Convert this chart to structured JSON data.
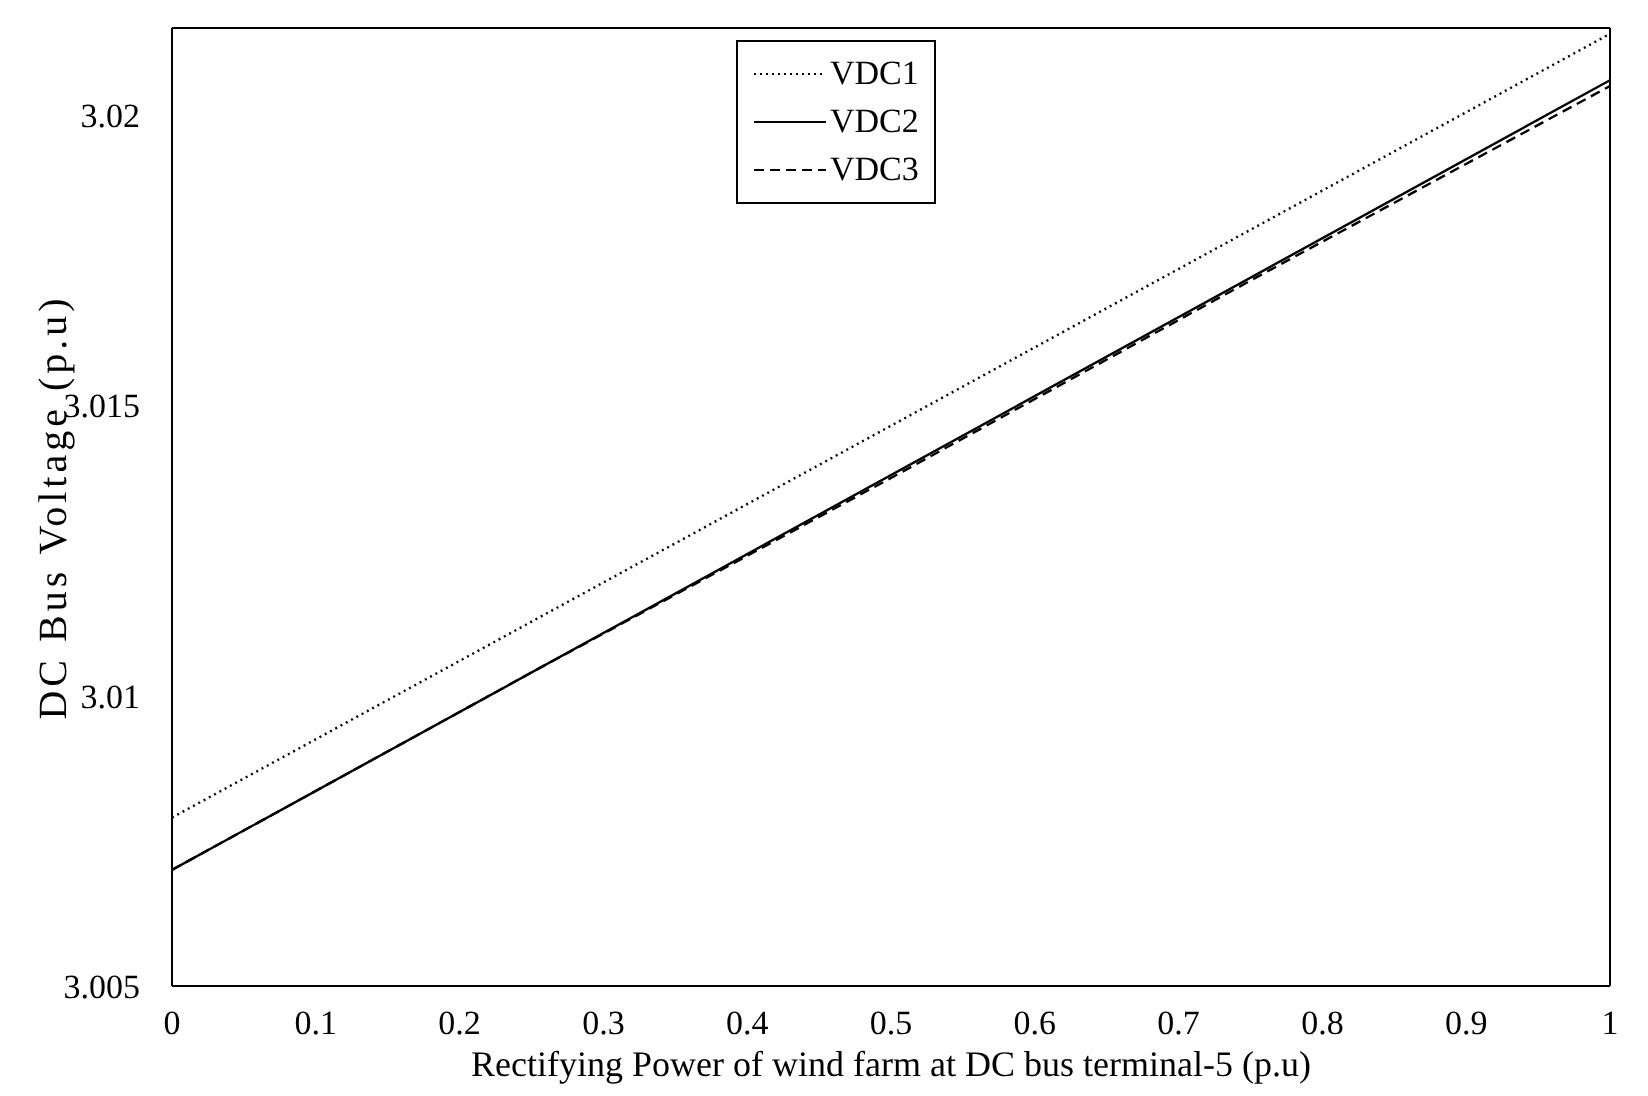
{
  "chart_data": {
    "type": "line",
    "xlabel": "Rectifying Power of wind farm at DC bus terminal-5 (p.u)",
    "ylabel": "DC Bus Voltage (p.u)",
    "xlim": [
      0,
      1
    ],
    "xticks": [
      0,
      0.1,
      0.2,
      0.3,
      0.4,
      0.5,
      0.6,
      0.7,
      0.8,
      0.9,
      1
    ],
    "ylim": [
      3.005,
      3.0215
    ],
    "yticks": [
      3.005,
      3.01,
      3.015,
      3.02
    ],
    "grid": false,
    "legend": "top",
    "marker": "none",
    "series": [
      {
        "name": "VDC1",
        "color": "#000000",
        "line_style": "dotted",
        "x": [
          0,
          1
        ],
        "values": [
          3.0079,
          3.0214
        ]
      },
      {
        "name": "VDC2",
        "color": "#000000",
        "line_style": "solid",
        "x": [
          0,
          1
        ],
        "values": [
          3.007,
          3.0206
        ]
      },
      {
        "name": "VDC3",
        "color": "#000000",
        "line_style": "dashed",
        "x": [
          0,
          0.25,
          0.5,
          0.75,
          1
        ],
        "values": [
          3.007,
          3.0104,
          3.01375,
          3.01715,
          3.0205
        ]
      }
    ]
  }
}
